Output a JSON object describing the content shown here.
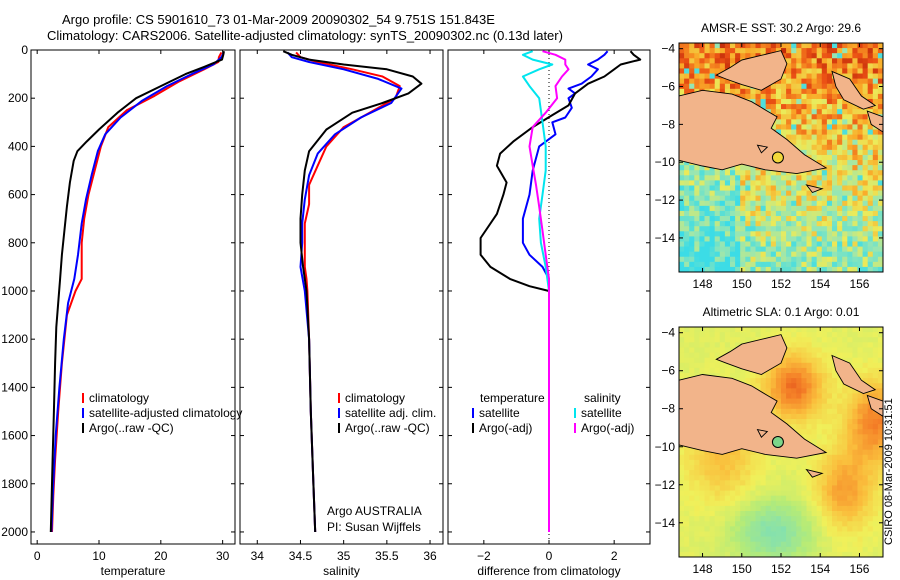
{
  "header": {
    "line1": "Argo profile: CS 5901610_73 01-Mar-2009 20090302_54 9.751S 151.843E",
    "line2": "Climatology: CARS2006. Satellite-adjusted climatology: synTS_20090302.nc (0.13d later)"
  },
  "credit": {
    "line1": "Argo AUSTRALIA",
    "line2": "PI: Susan Wijffels"
  },
  "stamp": "CSIRO 08-Mar-2009 10:31:51",
  "colors": {
    "climatology": "#ff0000",
    "satellite": "#0000ff",
    "argo": "#000000",
    "sal_satellite": "#00e5ee",
    "sal_argo": "#ff00ff",
    "land": "#f2b48a"
  },
  "chart_data": [
    {
      "type": "line",
      "title": "",
      "xlabel": "temperature",
      "ylabel": "depth",
      "xlim": [
        -1,
        32
      ],
      "ylim": [
        2050,
        0
      ],
      "xticks": [
        0,
        10,
        20,
        30
      ],
      "yticks": [
        0,
        200,
        400,
        600,
        800,
        1000,
        1200,
        1400,
        1600,
        1800,
        2000
      ],
      "legend": [
        "climatology",
        "satellite-adjusted climatology",
        "Argo(..raw -QC)"
      ],
      "series": [
        {
          "name": "climatology",
          "color": "climatology",
          "points": [
            [
              29.8,
              10
            ],
            [
              29.4,
              30
            ],
            [
              29.3,
              50
            ],
            [
              27,
              80
            ],
            [
              23,
              130
            ],
            [
              19,
              190
            ],
            [
              14.5,
              250
            ],
            [
              11.5,
              320
            ],
            [
              10.3,
              400
            ],
            [
              9.3,
              500
            ],
            [
              8.3,
              600
            ],
            [
              7.6,
              700
            ],
            [
              7.2,
              800
            ],
            [
              7.2,
              950
            ],
            [
              6.2,
              1000
            ],
            [
              4.8,
              1100
            ],
            [
              4,
              1300
            ],
            [
              3.4,
              1500
            ],
            [
              2.9,
              1700
            ],
            [
              2.6,
              1850
            ],
            [
              2.4,
              2000
            ]
          ]
        },
        {
          "name": "satellite-adjusted climatology",
          "color": "satellite",
          "points": [
            [
              30.2,
              10
            ],
            [
              29.8,
              30
            ],
            [
              28.5,
              60
            ],
            [
              25,
              100
            ],
            [
              21,
              150
            ],
            [
              17,
              210
            ],
            [
              13.5,
              280
            ],
            [
              11,
              350
            ],
            [
              9.8,
              420
            ],
            [
              8.8,
              520
            ],
            [
              7.9,
              620
            ],
            [
              7.2,
              720
            ],
            [
              6.6,
              850
            ],
            [
              6,
              950
            ],
            [
              5,
              1050
            ],
            [
              4.3,
              1200
            ],
            [
              3.6,
              1400
            ],
            [
              3,
              1600
            ],
            [
              2.6,
              1800
            ],
            [
              2.3,
              2000
            ]
          ]
        },
        {
          "name": "Argo(..raw -QC)",
          "color": "argo",
          "points": [
            [
              30.2,
              5
            ],
            [
              30.1,
              20
            ],
            [
              29.9,
              40
            ],
            [
              27,
              70
            ],
            [
              24,
              100
            ],
            [
              20,
              150
            ],
            [
              16,
              200
            ],
            [
              13,
              260
            ],
            [
              10,
              330
            ],
            [
              8,
              380
            ],
            [
              6.5,
              420
            ],
            [
              5.9,
              460
            ],
            [
              5.3,
              550
            ],
            [
              4.8,
              650
            ],
            [
              4.4,
              750
            ],
            [
              4,
              850
            ],
            [
              3.7,
              950
            ],
            [
              3.4,
              1050
            ],
            [
              3.1,
              1150
            ],
            [
              2.9,
              1300
            ],
            [
              2.7,
              1500
            ],
            [
              2.5,
              1700
            ],
            [
              2.3,
              1900
            ],
            [
              2.2,
              2000
            ]
          ]
        }
      ]
    },
    {
      "type": "line",
      "title": "",
      "xlabel": "salinity",
      "ylabel": "",
      "xlim": [
        33.8,
        36.15
      ],
      "ylim": [
        2050,
        0
      ],
      "xticks": [
        34,
        34.5,
        35,
        35.5,
        36
      ],
      "yticks": [
        0,
        200,
        400,
        600,
        800,
        1000,
        1200,
        1400,
        1600,
        1800,
        2000
      ],
      "legend": [
        "climatology",
        "satellite adj. clim.",
        "Argo(..raw -QC)"
      ],
      "series": [
        {
          "name": "climatology",
          "color": "climatology",
          "points": [
            [
              34.45,
              10
            ],
            [
              34.5,
              30
            ],
            [
              34.7,
              50
            ],
            [
              35.1,
              80
            ],
            [
              35.45,
              110
            ],
            [
              35.65,
              150
            ],
            [
              35.6,
              200
            ],
            [
              35.3,
              260
            ],
            [
              35,
              320
            ],
            [
              34.8,
              400
            ],
            [
              34.7,
              480
            ],
            [
              34.6,
              560
            ],
            [
              34.6,
              640
            ],
            [
              34.55,
              720
            ],
            [
              34.55,
              900
            ],
            [
              34.57,
              950
            ],
            [
              34.58,
              1000
            ],
            [
              34.6,
              1200
            ],
            [
              34.62,
              1500
            ],
            [
              34.65,
              1800
            ],
            [
              34.67,
              2000
            ]
          ]
        },
        {
          "name": "satellite adj. clim.",
          "color": "satellite",
          "points": [
            [
              34.35,
              10
            ],
            [
              34.4,
              30
            ],
            [
              34.6,
              50
            ],
            [
              35,
              80
            ],
            [
              35.4,
              120
            ],
            [
              35.67,
              160
            ],
            [
              35.55,
              220
            ],
            [
              35.2,
              280
            ],
            [
              34.9,
              350
            ],
            [
              34.7,
              430
            ],
            [
              34.6,
              520
            ],
            [
              34.55,
              620
            ],
            [
              34.52,
              720
            ],
            [
              34.52,
              800
            ],
            [
              34.5,
              900
            ],
            [
              34.55,
              1000
            ],
            [
              34.6,
              1200
            ],
            [
              34.62,
              1500
            ],
            [
              34.65,
              1800
            ],
            [
              34.67,
              2000
            ]
          ]
        },
        {
          "name": "Argo(..raw -QC)",
          "color": "argo",
          "points": [
            [
              34.3,
              5
            ],
            [
              34.4,
              20
            ],
            [
              34.6,
              40
            ],
            [
              35,
              60
            ],
            [
              35.5,
              80
            ],
            [
              35.8,
              110
            ],
            [
              35.9,
              140
            ],
            [
              35.75,
              180
            ],
            [
              35.45,
              220
            ],
            [
              35.1,
              260
            ],
            [
              34.8,
              330
            ],
            [
              34.6,
              420
            ],
            [
              34.55,
              500
            ],
            [
              34.52,
              600
            ],
            [
              34.5,
              700
            ],
            [
              34.5,
              800
            ],
            [
              34.53,
              900
            ],
            [
              34.57,
              1000
            ],
            [
              34.6,
              1200
            ],
            [
              34.62,
              1500
            ],
            [
              34.65,
              1800
            ],
            [
              34.67,
              2000
            ]
          ]
        }
      ]
    },
    {
      "type": "line",
      "title": "",
      "xlabel": "difference from climatology",
      "ylabel": "",
      "xlim": [
        -3.1,
        3.1
      ],
      "ylim": [
        2050,
        0
      ],
      "xticks": [
        -2,
        0,
        2
      ],
      "yticks": [
        0,
        200,
        400,
        600,
        800,
        1000,
        1200,
        1400,
        1600,
        1800,
        2000
      ],
      "zero_line": 0,
      "legend_temperature": {
        "heading": "temperature",
        "items": [
          "satellite",
          "Argo(-adj)"
        ]
      },
      "legend_salinity": {
        "heading": "salinity",
        "items": [
          "satellite",
          "Argo(-adj)"
        ]
      },
      "series": [
        {
          "name": "temperature satellite",
          "color": "satellite",
          "points": [
            [
              1.8,
              5
            ],
            [
              1.7,
              20
            ],
            [
              1.5,
              40
            ],
            [
              1.2,
              60
            ],
            [
              1.5,
              80
            ],
            [
              1.3,
              110
            ],
            [
              1,
              140
            ],
            [
              0.6,
              160
            ],
            [
              0.8,
              180
            ],
            [
              0.6,
              200
            ],
            [
              0.7,
              240
            ],
            [
              0.5,
              280
            ],
            [
              0.1,
              300
            ],
            [
              0.2,
              350
            ],
            [
              -0.3,
              400
            ],
            [
              -0.5,
              500
            ],
            [
              -0.6,
              600
            ],
            [
              -0.8,
              700
            ],
            [
              -0.8,
              800
            ],
            [
              -0.6,
              850
            ],
            [
              -0.2,
              900
            ],
            [
              0,
              950
            ],
            [
              0,
              1000
            ],
            [
              0,
              1500
            ],
            [
              0,
              2000
            ]
          ]
        },
        {
          "name": "temperature Argo(-adj)",
          "color": "argo",
          "points": [
            [
              2.5,
              5
            ],
            [
              2.6,
              20
            ],
            [
              2.8,
              40
            ],
            [
              2.2,
              60
            ],
            [
              2,
              80
            ],
            [
              1.7,
              110
            ],
            [
              1.2,
              140
            ],
            [
              0.8,
              180
            ],
            [
              0.6,
              230
            ],
            [
              0.1,
              270
            ],
            [
              -0.5,
              320
            ],
            [
              -1.1,
              380
            ],
            [
              -1.5,
              430
            ],
            [
              -1.6,
              480
            ],
            [
              -1.3,
              550
            ],
            [
              -1.4,
              600
            ],
            [
              -1.6,
              680
            ],
            [
              -2.1,
              780
            ],
            [
              -2.1,
              850
            ],
            [
              -1.8,
              900
            ],
            [
              -1.2,
              950
            ],
            [
              -0.6,
              980
            ],
            [
              0,
              1000
            ],
            [
              0,
              1500
            ],
            [
              0,
              2000
            ]
          ]
        },
        {
          "name": "salinity satellite",
          "color": "sal_satellite",
          "points": [
            [
              -0.5,
              5
            ],
            [
              -0.8,
              20
            ],
            [
              -0.5,
              40
            ],
            [
              0.1,
              60
            ],
            [
              -0.3,
              80
            ],
            [
              -0.8,
              110
            ],
            [
              -0.6,
              150
            ],
            [
              -0.3,
              200
            ],
            [
              -0.2,
              300
            ],
            [
              -0.1,
              400
            ],
            [
              -0.1,
              500
            ],
            [
              -0.2,
              600
            ],
            [
              -0.3,
              700
            ],
            [
              -0.25,
              800
            ],
            [
              -0.1,
              900
            ],
            [
              0,
              1000
            ],
            [
              0,
              1500
            ],
            [
              0,
              2000
            ]
          ]
        },
        {
          "name": "salinity Argo(-adj)",
          "color": "sal_argo",
          "points": [
            [
              -0.2,
              5
            ],
            [
              0.2,
              20
            ],
            [
              0.5,
              40
            ],
            [
              0.5,
              60
            ],
            [
              0.6,
              80
            ],
            [
              0.4,
              110
            ],
            [
              0.2,
              150
            ],
            [
              0.25,
              200
            ],
            [
              -0.1,
              260
            ],
            [
              -0.5,
              320
            ],
            [
              -0.6,
              400
            ],
            [
              -0.5,
              480
            ],
            [
              -0.4,
              560
            ],
            [
              -0.3,
              650
            ],
            [
              -0.2,
              750
            ],
            [
              -0.1,
              850
            ],
            [
              0,
              950
            ],
            [
              0,
              1000
            ],
            [
              0,
              1500
            ],
            [
              0,
              2000
            ]
          ]
        }
      ]
    },
    {
      "type": "heatmap",
      "title": "AMSR-E SST: 30.2 Argo: 29.6",
      "xlabel": "",
      "ylabel": "",
      "xlim": [
        146.8,
        157.2
      ],
      "ylim": [
        -15.8,
        -3.7
      ],
      "xticks": [
        148,
        150,
        152,
        154,
        156
      ],
      "yticks": [
        -4,
        -6,
        -8,
        -10,
        -12,
        -14
      ],
      "marker": {
        "lon": 151.843,
        "lat": -9.751
      }
    },
    {
      "type": "heatmap",
      "title": "Altimetric SLA: 0.1 Argo: 0.01",
      "xlabel": "",
      "ylabel": "",
      "xlim": [
        146.8,
        157.2
      ],
      "ylim": [
        -15.8,
        -3.7
      ],
      "xticks": [
        148,
        150,
        152,
        154,
        156
      ],
      "yticks": [
        -4,
        -6,
        -8,
        -10,
        -12,
        -14
      ],
      "marker": {
        "lon": 151.843,
        "lat": -9.751
      }
    }
  ]
}
